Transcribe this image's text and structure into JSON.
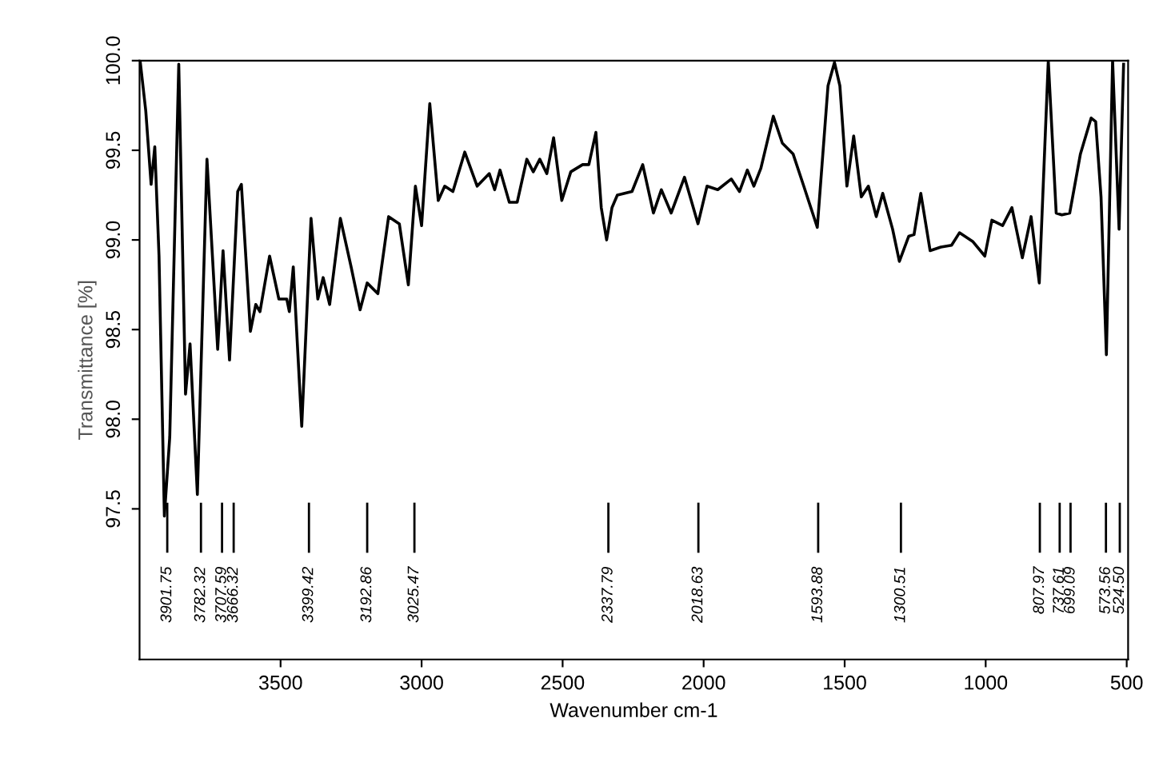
{
  "chart_data": {
    "type": "line",
    "xlabel": "Wavenumber cm-1",
    "ylabel": "Transmittance [%]",
    "xlim": [
      4000,
      495
    ],
    "ylim": [
      96.66,
      100.0
    ],
    "xticks": [
      3500,
      3000,
      2500,
      2000,
      1500,
      1000,
      500
    ],
    "yticks": [
      97.5,
      {
        "value": 98,
        "label": "98.0"
      },
      98.5,
      {
        "value": 99,
        "label": "99.0"
      },
      99.5,
      {
        "value": 100,
        "label": "100.0"
      }
    ],
    "grid": false,
    "series": [
      {
        "color": "#000000",
        "x": [
          3998,
          3978,
          3959,
          3946,
          3931,
          3912,
          3893,
          3861,
          3837,
          3821,
          3795,
          3761,
          3723,
          3704,
          3681,
          3652,
          3639,
          3607,
          3588,
          3573,
          3539,
          3506,
          3478,
          3469,
          3455,
          3425,
          3392,
          3368,
          3349,
          3326,
          3288,
          3250,
          3218,
          3193,
          3155,
          3117,
          3079,
          3047,
          3022,
          3000,
          2971,
          2941,
          2918,
          2889,
          2847,
          2803,
          2760,
          2741,
          2722,
          2689,
          2661,
          2627,
          2604,
          2581,
          2556,
          2532,
          2503,
          2471,
          2429,
          2407,
          2382,
          2363,
          2344,
          2325,
          2306,
          2254,
          2216,
          2178,
          2150,
          2115,
          2068,
          2020,
          1988,
          1950,
          1902,
          1873,
          1845,
          1822,
          1797,
          1753,
          1721,
          1683,
          1645,
          1597,
          1559,
          1536,
          1517,
          1492,
          1468,
          1441,
          1416,
          1388,
          1365,
          1330,
          1306,
          1273,
          1254,
          1230,
          1197,
          1159,
          1121,
          1093,
          1045,
          1003,
          978,
          940,
          907,
          870,
          839,
          810,
          778,
          750,
          730,
          702,
          664,
          626,
          610,
          591,
          572,
          550,
          527,
          511
        ],
        "values": [
          100.0,
          99.72,
          99.31,
          99.52,
          98.91,
          97.46,
          97.9,
          99.98,
          98.14,
          98.42,
          97.58,
          99.45,
          98.39,
          98.94,
          98.33,
          99.27,
          99.31,
          98.49,
          98.64,
          98.6,
          98.91,
          98.67,
          98.67,
          98.6,
          98.85,
          97.96,
          99.12,
          98.67,
          98.79,
          98.64,
          99.12,
          98.85,
          98.61,
          98.76,
          98.7,
          99.13,
          99.09,
          98.75,
          99.3,
          99.08,
          99.76,
          99.22,
          99.3,
          99.27,
          99.49,
          99.3,
          99.37,
          99.28,
          99.39,
          99.21,
          99.21,
          99.45,
          99.38,
          99.45,
          99.37,
          99.57,
          99.22,
          99.38,
          99.42,
          99.42,
          99.6,
          99.18,
          99.0,
          99.18,
          99.25,
          99.27,
          99.42,
          99.15,
          99.28,
          99.15,
          99.35,
          99.09,
          99.3,
          99.28,
          99.34,
          99.27,
          99.39,
          99.3,
          99.4,
          99.69,
          99.54,
          99.48,
          99.3,
          99.07,
          99.86,
          99.99,
          99.86,
          99.3,
          99.58,
          99.24,
          99.3,
          99.13,
          99.26,
          99.06,
          98.88,
          99.02,
          99.03,
          99.26,
          98.94,
          98.96,
          98.97,
          99.04,
          98.99,
          98.91,
          99.11,
          99.08,
          99.18,
          98.9,
          99.13,
          98.76,
          100.0,
          99.15,
          99.14,
          99.15,
          99.48,
          99.68,
          99.66,
          99.24,
          98.36,
          100.0,
          99.06,
          99.98
        ]
      }
    ],
    "annotations": [
      {
        "text": "3901.75",
        "x": 3901.75
      },
      {
        "text": "3782.32",
        "x": 3782.32
      },
      {
        "text": "3707.59",
        "x": 3707.59
      },
      {
        "text": "3666.32",
        "x": 3666.32
      },
      {
        "text": "3399.42",
        "x": 3399.42
      },
      {
        "text": "3192.86",
        "x": 3192.86
      },
      {
        "text": "3025.47",
        "x": 3025.47
      },
      {
        "text": "2337.79",
        "x": 2337.79
      },
      {
        "text": "2018.63",
        "x": 2018.63
      },
      {
        "text": "1593.88",
        "x": 1593.88
      },
      {
        "text": "1300.51",
        "x": 1300.51
      },
      {
        "text": "807.97",
        "x": 807.97
      },
      {
        "text": "737.61",
        "x": 737.61
      },
      {
        "text": "699.09",
        "x": 699.09
      },
      {
        "text": "573.56",
        "x": 573.56
      },
      {
        "text": "524.50",
        "x": 524.5
      }
    ]
  }
}
